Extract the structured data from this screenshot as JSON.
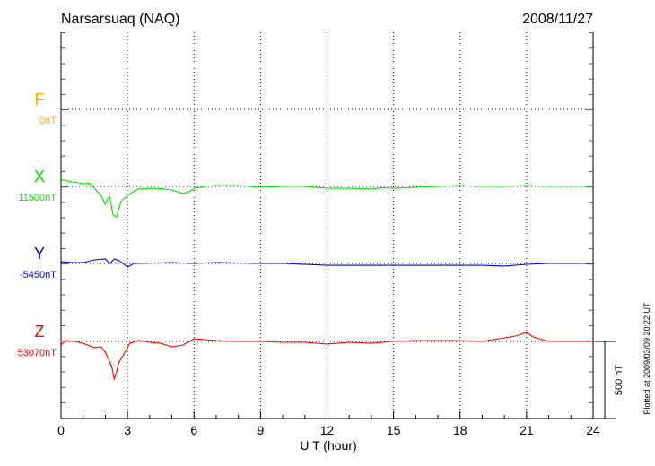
{
  "chart_data": {
    "type": "line",
    "title": "Narsarsuaq (NAQ)",
    "date": "2008/11/27",
    "xlabel": "U T (hour)",
    "xlim": [
      0,
      24
    ],
    "xticks": [
      "0",
      "3",
      "6",
      "9",
      "12",
      "15",
      "18",
      "21",
      "24"
    ],
    "grid": true,
    "scale_bar_label": "500 nT",
    "scale_bar_nT": 500,
    "plotted_note": "Plotted at 2009/03/09 20:22 UT",
    "series": [
      {
        "name": "F",
        "baseline_label": "0nT",
        "color": "#ffa500",
        "points": []
      },
      {
        "name": "X",
        "baseline_label": "11500nT",
        "color": "#00e000",
        "points": [
          [
            0,
            46
          ],
          [
            0.3,
            35
          ],
          [
            0.5,
            29
          ],
          [
            0.8,
            23
          ],
          [
            1,
            17
          ],
          [
            1.3,
            20
          ],
          [
            1.5,
            -12
          ],
          [
            1.8,
            -58
          ],
          [
            2.0,
            -116
          ],
          [
            2.1,
            -80
          ],
          [
            2.2,
            -70
          ],
          [
            2.35,
            -186
          ],
          [
            2.5,
            -197
          ],
          [
            2.6,
            -150
          ],
          [
            2.7,
            -99
          ],
          [
            3,
            -58
          ],
          [
            3.3,
            -30
          ],
          [
            3.5,
            -17
          ],
          [
            4,
            -12
          ],
          [
            4.5,
            -15
          ],
          [
            5,
            -23
          ],
          [
            5.5,
            -46
          ],
          [
            5.8,
            -35
          ],
          [
            6,
            -12
          ],
          [
            6.5,
            0
          ],
          [
            7,
            6
          ],
          [
            8,
            6
          ],
          [
            9,
            -6
          ],
          [
            10,
            0
          ],
          [
            11,
            0
          ],
          [
            12,
            -12
          ],
          [
            13,
            -12
          ],
          [
            14,
            -17
          ],
          [
            14.5,
            -8
          ],
          [
            15,
            -12
          ],
          [
            16,
            -6
          ],
          [
            17,
            0
          ],
          [
            18,
            6
          ],
          [
            19,
            0
          ],
          [
            20,
            0
          ],
          [
            21,
            6
          ],
          [
            22,
            0
          ],
          [
            23,
            2
          ],
          [
            24,
            0
          ]
        ]
      },
      {
        "name": "Y",
        "baseline_label": "-5450nT",
        "color": "#0000ff",
        "points": [
          [
            0,
            12
          ],
          [
            0.5,
            6
          ],
          [
            1,
            6
          ],
          [
            1.5,
            23
          ],
          [
            2,
            29
          ],
          [
            2.2,
            0
          ],
          [
            2.4,
            29
          ],
          [
            2.6,
            20
          ],
          [
            2.8,
            0
          ],
          [
            3.0,
            -23
          ],
          [
            3.3,
            0
          ],
          [
            3.5,
            0
          ],
          [
            5,
            6
          ],
          [
            6,
            0
          ],
          [
            7,
            6
          ],
          [
            9,
            0
          ],
          [
            10,
            0
          ],
          [
            12,
            -12
          ],
          [
            13,
            -12
          ],
          [
            15,
            -12
          ],
          [
            17,
            -12
          ],
          [
            19,
            -12
          ],
          [
            20,
            -17
          ],
          [
            21,
            -6
          ],
          [
            22,
            0
          ],
          [
            24,
            0
          ]
        ]
      },
      {
        "name": "Z",
        "baseline_label": "53070nT",
        "color": "#ff0000",
        "points": [
          [
            0,
            -23
          ],
          [
            0.2,
            6
          ],
          [
            0.6,
            0
          ],
          [
            1,
            -12
          ],
          [
            1.5,
            -40
          ],
          [
            1.8,
            -35
          ],
          [
            2.0,
            -70
          ],
          [
            2.2,
            -133
          ],
          [
            2.3,
            -170
          ],
          [
            2.4,
            -244
          ],
          [
            2.5,
            -200
          ],
          [
            2.6,
            -140
          ],
          [
            2.9,
            -64
          ],
          [
            3.1,
            -12
          ],
          [
            3.5,
            6
          ],
          [
            4,
            -6
          ],
          [
            4.5,
            -12
          ],
          [
            5,
            -35
          ],
          [
            5.5,
            -23
          ],
          [
            6,
            17
          ],
          [
            7,
            6
          ],
          [
            8,
            0
          ],
          [
            9,
            0
          ],
          [
            10,
            -6
          ],
          [
            11,
            -6
          ],
          [
            12,
            -17
          ],
          [
            13,
            -6
          ],
          [
            14,
            -12
          ],
          [
            15,
            0
          ],
          [
            16,
            6
          ],
          [
            17,
            6
          ],
          [
            18,
            6
          ],
          [
            19,
            0
          ],
          [
            20,
            23
          ],
          [
            20.5,
            35
          ],
          [
            21,
            58
          ],
          [
            21.3,
            29
          ],
          [
            22,
            0
          ],
          [
            24,
            0
          ]
        ]
      }
    ]
  }
}
